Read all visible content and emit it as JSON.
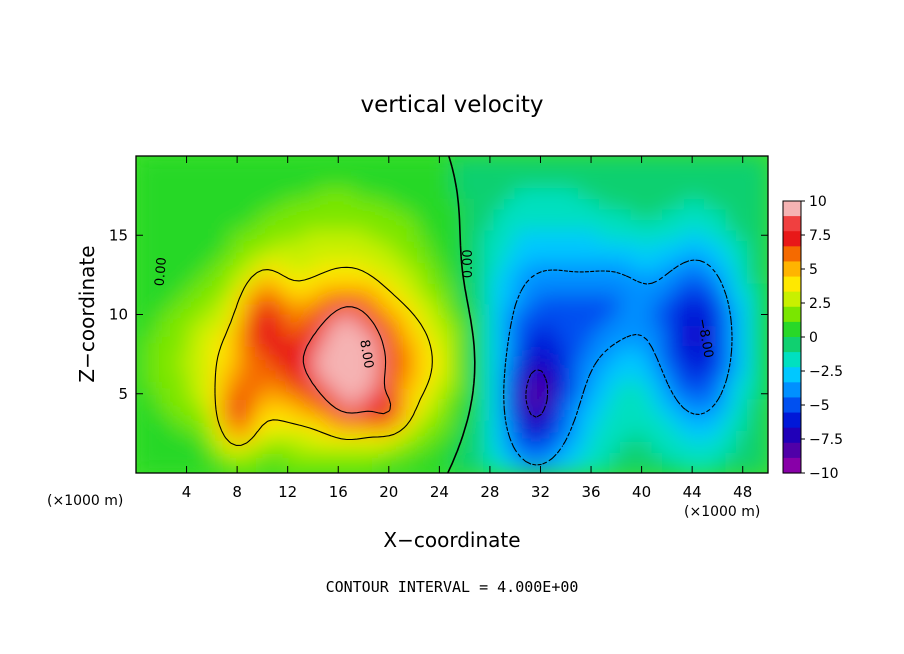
{
  "chart_data": {
    "type": "heatmap",
    "title": "vertical velocity",
    "xlabel": "X−coordinate",
    "ylabel": "Z−coordinate",
    "x_unit_label": "(×1000 m)",
    "y_unit_label": "(×1000 m)",
    "xlim": [
      0,
      50
    ],
    "ylim": [
      0,
      20
    ],
    "x_ticks": [
      4,
      8,
      12,
      16,
      20,
      24,
      28,
      32,
      36,
      40,
      44,
      48
    ],
    "y_ticks": [
      5,
      10,
      15
    ],
    "colorbar": {
      "range": [
        -10,
        10
      ],
      "ticks": [
        10,
        7.5,
        5,
        2.5,
        0,
        -2.5,
        -5,
        -7.5,
        -10
      ],
      "tick_labels": [
        "10",
        "7.5",
        "5",
        "2.5",
        "0",
        "−2.5",
        "−5",
        "−7.5",
        "−10"
      ],
      "colors": [
        "#f5b3b3",
        "#f04040",
        "#e81818",
        "#f56a00",
        "#ffb400",
        "#ffe800",
        "#c8f000",
        "#7ae600",
        "#28d828",
        "#10d070",
        "#00e0c0",
        "#00c8ff",
        "#0090ff",
        "#0050f0",
        "#0018d8",
        "#2000b8",
        "#5000a8",
        "#8800a8"
      ]
    },
    "contour_labels": [
      {
        "text": "0.00",
        "x": 2,
        "z": 12.7,
        "angle": -85
      },
      {
        "text": "0.00",
        "x": 26.3,
        "z": 13.2,
        "angle": -90
      },
      {
        "text": "8.00",
        "x": 18.2,
        "z": 7.5,
        "angle": 80
      },
      {
        "text": "−8.00",
        "x": 45,
        "z": 8.5,
        "angle": 80
      }
    ],
    "footer": "CONTOUR INTERVAL = 4.000E+00",
    "features": [
      {
        "sign": "positive",
        "x": 15.5,
        "z": 7.0,
        "sx": 7.5,
        "sz": 3.5,
        "peak": 8
      },
      {
        "sign": "positive",
        "x": 8.0,
        "z": 3.5,
        "sx": 1.1,
        "sz": 1.6,
        "peak": 4.5
      },
      {
        "sign": "positive",
        "x": 10.0,
        "z": 10.5,
        "sx": 1.2,
        "sz": 1.8,
        "peak": 3.2
      },
      {
        "sign": "positive",
        "x": 17.0,
        "z": 7.0,
        "sx": 1.5,
        "sz": 2.6,
        "peak": 6
      },
      {
        "sign": "positive",
        "x": 20.0,
        "z": 3.8,
        "sx": 1.1,
        "sz": 1.0,
        "peak": 3.2
      },
      {
        "sign": "positive",
        "x": 16.0,
        "z": 14.5,
        "sx": 6.0,
        "sz": 3.0,
        "peak": 2.0
      },
      {
        "sign": "negative",
        "x": 32.0,
        "z": 7.5,
        "sx": 4.0,
        "sz": 6.0,
        "peak": -6
      },
      {
        "sign": "negative",
        "x": 31.5,
        "z": 4.5,
        "sx": 1.5,
        "sz": 2.5,
        "peak": -4
      },
      {
        "sign": "negative",
        "x": 44.5,
        "z": 8.5,
        "sx": 2.5,
        "sz": 4.5,
        "peak": -7
      },
      {
        "sign": "negative",
        "x": 38.5,
        "z": 11.0,
        "sx": 2.5,
        "sz": 3.0,
        "peak": -3
      }
    ]
  }
}
